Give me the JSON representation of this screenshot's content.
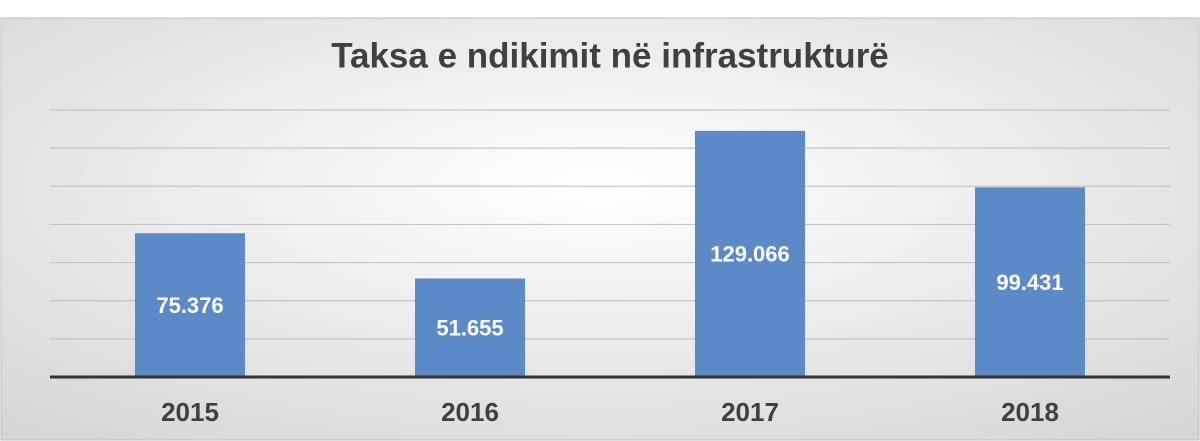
{
  "chart_data": {
    "type": "bar",
    "title": "Taksa e ndikimit në infrastrukturë",
    "categories": [
      "2015",
      "2016",
      "2017",
      "2018"
    ],
    "values": [
      75.376,
      51.655,
      129.066,
      99.431
    ],
    "color": "#5b8ac6",
    "ylim": [
      0,
      140
    ],
    "yticks": [
      0,
      20,
      40,
      60,
      80,
      100,
      120,
      140
    ],
    "grid": true
  }
}
